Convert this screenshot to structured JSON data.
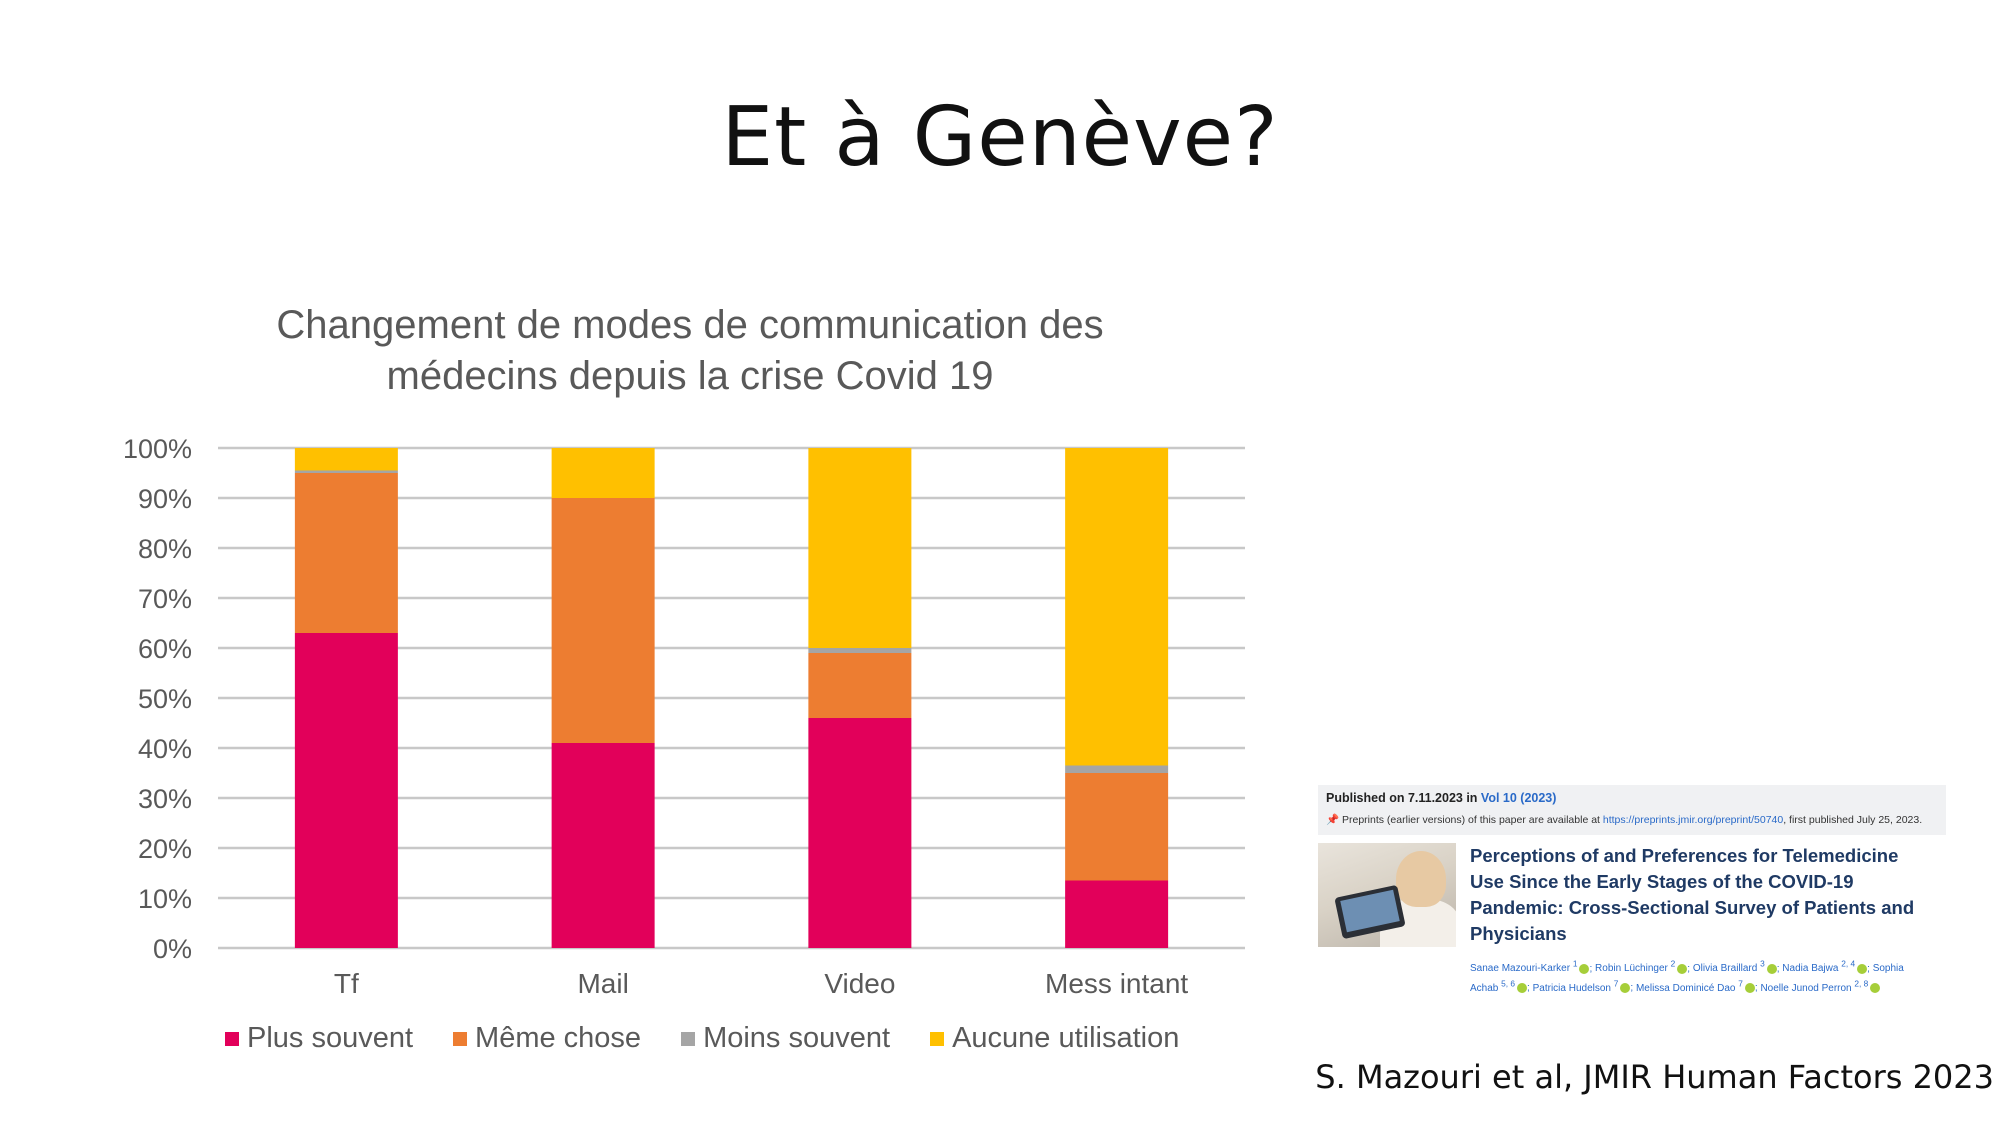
{
  "slide": {
    "title": "Et à Genève?",
    "source": "S. Mazouri et al, JMIR Human Factors 2023"
  },
  "chart_data": {
    "type": "bar",
    "stacked": true,
    "percent": true,
    "title": "Changement de modes de communication des médecins depuis la crise Covid 19",
    "title_lines": [
      "Changement de modes de communication des",
      "médecins depuis la crise Covid 19"
    ],
    "categories": [
      "Tf",
      "Mail",
      "Video",
      "Mess intant"
    ],
    "ylim": [
      0,
      100
    ],
    "yticks": [
      "0%",
      "10%",
      "20%",
      "30%",
      "40%",
      "50%",
      "60%",
      "70%",
      "80%",
      "90%",
      "100%"
    ],
    "grid": true,
    "legend_position": "bottom",
    "series": [
      {
        "name": "Plus souvent",
        "color": "#e2005a",
        "values": [
          63,
          41,
          46,
          13.5
        ]
      },
      {
        "name": "Même chose",
        "color": "#ed7d31",
        "values": [
          32,
          49,
          13,
          21.5
        ]
      },
      {
        "name": "Moins souvent",
        "color": "#a5a5a5",
        "values": [
          0.5,
          0,
          1,
          1.5
        ]
      },
      {
        "name": "Aucune utilisation",
        "color": "#ffc000",
        "values": [
          4.5,
          10,
          40,
          63.5
        ]
      }
    ]
  },
  "article": {
    "published_prefix": "Published on 7.11.2023 in ",
    "published_vol": "Vol 10 (2023)",
    "preprint_prefix": "Preprints (earlier versions) of this paper are available at ",
    "preprint_link": "https://preprints.jmir.org/preprint/50740",
    "preprint_suffix": ", first published July 25, 2023.",
    "title": "Perceptions of and Preferences for Telemedicine Use Since the Early Stages of the COVID-19 Pandemic: Cross-Sectional Survey of Patients and Physicians",
    "authors": [
      {
        "name": "Sanae Mazouri-Karker",
        "sup": "1"
      },
      {
        "name": "Robin Lüchinger",
        "sup": "2"
      },
      {
        "name": "Olivia Braillard",
        "sup": "3"
      },
      {
        "name": "Nadia Bajwa",
        "sup": "2, 4"
      },
      {
        "name": "Sophia Achab",
        "sup": "5, 6"
      },
      {
        "name": "Patricia Hudelson",
        "sup": "7"
      },
      {
        "name": "Melissa Dominicé Dao",
        "sup": "7"
      },
      {
        "name": "Noelle Junod Perron",
        "sup": "2, 8"
      }
    ]
  }
}
